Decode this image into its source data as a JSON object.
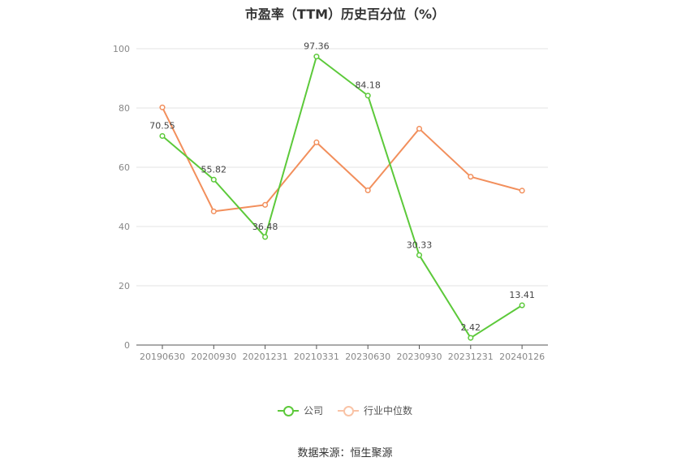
{
  "chart_data": {
    "type": "line",
    "title": "市盈率（TTM）历史百分位（%）",
    "categories": [
      "20190630",
      "20200930",
      "20201231",
      "20210331",
      "20230630",
      "20230930",
      "20231231",
      "20240126"
    ],
    "ylim": [
      0,
      100
    ],
    "yticks": [
      0,
      20,
      40,
      60,
      80,
      100
    ],
    "grid": true,
    "legend_position": "bottom",
    "series": [
      {
        "name": "公司",
        "color": "#5cc93a",
        "values": [
          70.55,
          55.82,
          36.48,
          97.36,
          84.18,
          30.33,
          2.42,
          13.41
        ],
        "labels": [
          "70.55",
          "55.82",
          "36.48",
          "97.36",
          "84.18",
          "30.33",
          "2.42",
          "13.41"
        ]
      },
      {
        "name": "行业中位数",
        "color": "#f28f5c",
        "values": [
          80.2,
          45.1,
          47.3,
          68.4,
          52.2,
          73.0,
          56.8,
          52.1
        ]
      }
    ]
  },
  "source": "数据来源：恒生聚源"
}
